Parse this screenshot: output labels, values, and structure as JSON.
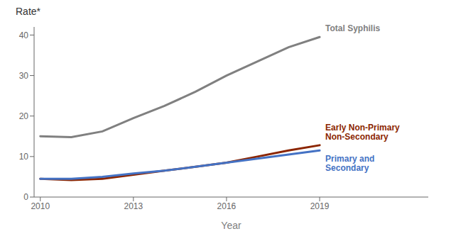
{
  "chart_data": {
    "type": "line",
    "ylabel": "Rate*",
    "xlabel": "Year",
    "x": [
      2010,
      2011,
      2012,
      2013,
      2014,
      2015,
      2016,
      2017,
      2018,
      2019
    ],
    "series": [
      {
        "name": "Total Syphilis",
        "color": "#808080",
        "values": [
          15.0,
          14.8,
          16.2,
          19.5,
          22.5,
          26.0,
          30.0,
          33.5,
          37.0,
          39.5
        ]
      },
      {
        "name": "Early Non-Primary\nNon-Secondary",
        "color": "#8B2500",
        "values": [
          4.5,
          4.2,
          4.5,
          5.5,
          6.5,
          7.5,
          8.5,
          10.0,
          11.5,
          12.8
        ]
      },
      {
        "name": "Primary and\nSecondary",
        "color": "#4472C4",
        "values": [
          4.5,
          4.5,
          5.0,
          5.8,
          6.5,
          7.5,
          8.5,
          9.5,
          10.5,
          11.5
        ]
      }
    ],
    "xlim": [
      2009.8,
      2022.5
    ],
    "xticks": [
      2010,
      2013,
      2016,
      2019
    ],
    "ylim": [
      0,
      42
    ],
    "yticks": [
      0,
      10,
      20,
      30,
      40
    ],
    "grid": false
  }
}
